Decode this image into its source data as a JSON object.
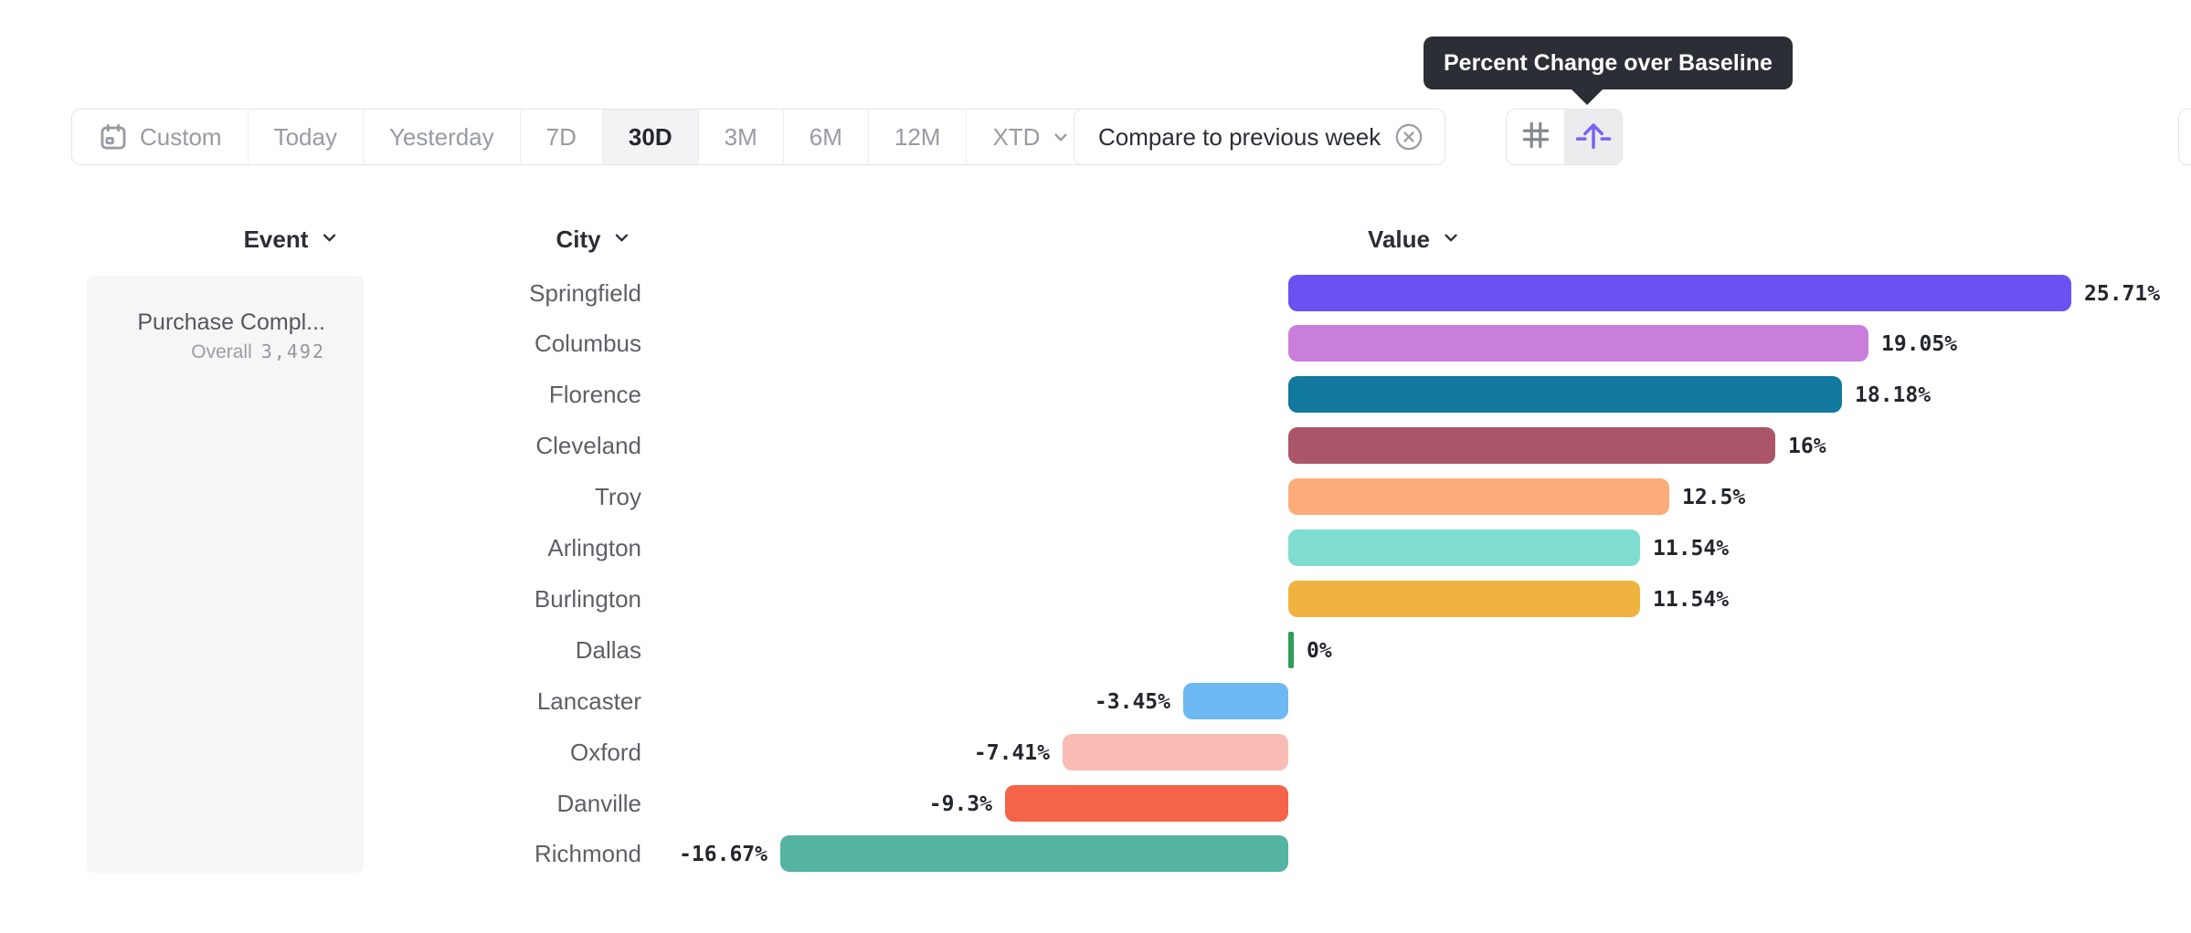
{
  "toolbar": {
    "date_ranges": [
      {
        "label": "Custom",
        "icon": "calendar-icon",
        "active": false
      },
      {
        "label": "Today",
        "active": false
      },
      {
        "label": "Yesterday",
        "active": false
      },
      {
        "label": "7D",
        "active": false
      },
      {
        "label": "30D",
        "active": true
      },
      {
        "label": "3M",
        "active": false
      },
      {
        "label": "6M",
        "active": false
      },
      {
        "label": "12M",
        "active": false
      },
      {
        "label": "XTD",
        "active": false,
        "chevron": true
      }
    ],
    "compare_chip": {
      "label": "Compare to previous week",
      "icon": "close-circle-icon"
    },
    "view_toggle": [
      {
        "name": "grid-view",
        "icon": "hash-grid-icon",
        "active": false
      },
      {
        "name": "percent-change-view",
        "icon": "arrow-up-baseline-icon",
        "active": true
      }
    ]
  },
  "tooltip": {
    "text": "Percent Change over Baseline"
  },
  "columns": [
    {
      "label": "Event"
    },
    {
      "label": "City"
    },
    {
      "label": "Value"
    }
  ],
  "event_panel": {
    "event_name": "Purchase Compl...",
    "overall_label": "Overall",
    "overall_value": "3,492"
  },
  "chart_data": {
    "type": "bar",
    "orientation": "horizontal",
    "title": "Percent Change over Baseline",
    "value_unit": "%",
    "xlim": [
      -16.67,
      25.71
    ],
    "grid": false,
    "legend": false,
    "categories": [
      "Springfield",
      "Columbus",
      "Florence",
      "Cleveland",
      "Troy",
      "Arlington",
      "Burlington",
      "Dallas",
      "Lancaster",
      "Oxford",
      "Danville",
      "Richmond"
    ],
    "values": [
      25.71,
      19.05,
      18.18,
      16,
      12.5,
      11.54,
      11.54,
      0,
      -3.45,
      -7.41,
      -9.3,
      -16.67
    ],
    "labels": [
      "25.71%",
      "19.05%",
      "18.18%",
      "16%",
      "12.5%",
      "11.54%",
      "11.54%",
      "0%",
      "-3.45%",
      "-7.41%",
      "-9.3%",
      "-16.67%"
    ],
    "colors": [
      "#6b51f2",
      "#c97edb",
      "#11789e",
      "#ab5569",
      "#fbac79",
      "#7edcd1",
      "#f1b33f",
      "#2f9e57",
      "#6db7f2",
      "#f8bcb4",
      "#f56448",
      "#55b4a1"
    ]
  },
  "colors": {
    "accent_indigo": "#7763f2",
    "tooltip_bg": "#2b2e35",
    "border": "#e3e4e8",
    "inactive_text": "#989ba3",
    "active_seg_bg": "#f3f3f5",
    "panel_bg": "#f6f6f7"
  }
}
